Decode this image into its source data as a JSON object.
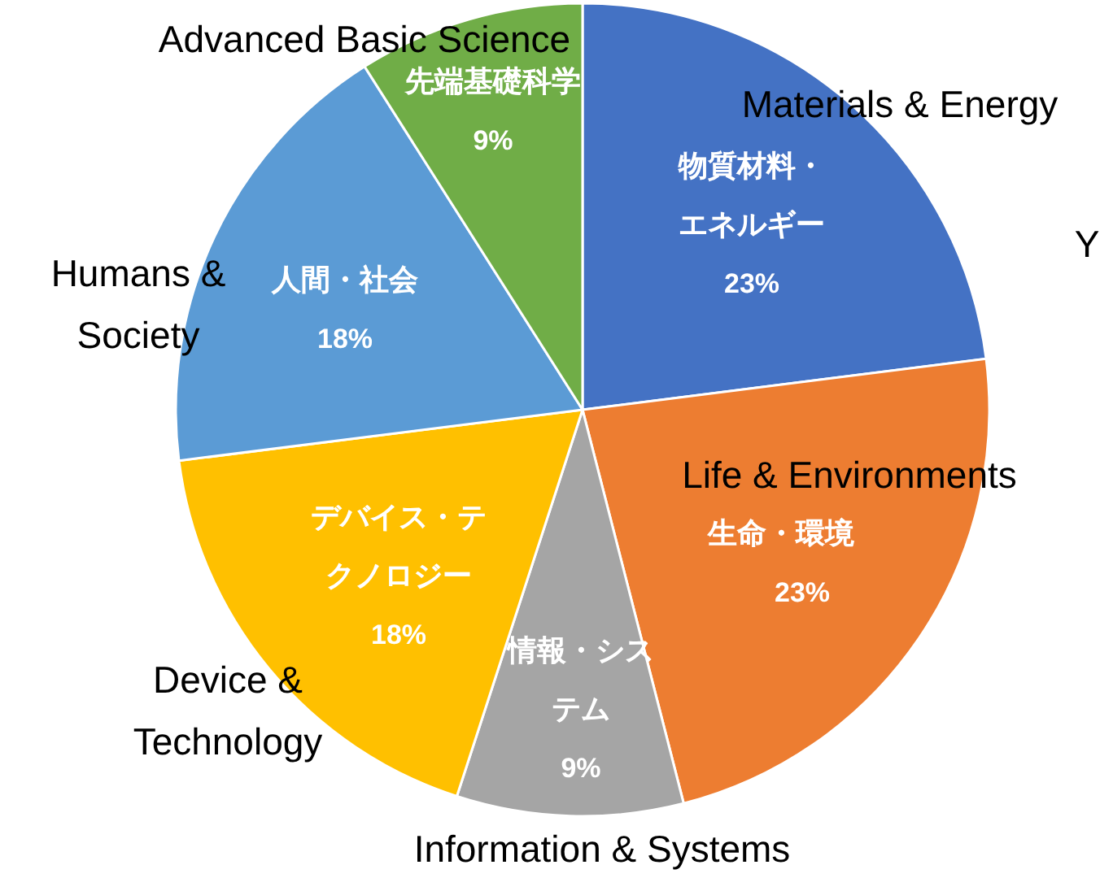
{
  "chart_data": {
    "type": "pie",
    "categories": [
      "Materials & Energy",
      "Life & Environments",
      "Information & Systems",
      "Device & Technology",
      "Humans & Society",
      "Advanced Basic Science"
    ],
    "values": [
      23,
      23,
      9,
      18,
      18,
      9
    ],
    "colors": [
      "#4472c4",
      "#ed7d31",
      "#a5a5a5",
      "#ffc000",
      "#5b9bd5",
      "#70ad47"
    ],
    "value_labels": [
      "23%",
      "23%",
      "9%",
      "18%",
      "18%",
      "9%"
    ],
    "annotations": [
      {
        "text": "物質材料・エネルギー",
        "x": "Materials & Energy"
      },
      {
        "text": "生命・環境",
        "x": "Life & Environments"
      },
      {
        "text": "情報・システム",
        "x": "Information & Systems"
      },
      {
        "text": "デバイス・テクノロジー",
        "x": "Device & Technology"
      },
      {
        "text": "人間・社会",
        "x": "Humans & Society"
      },
      {
        "text": "先端基礎科学",
        "x": "Advanced Basic Science"
      },
      "Y"
    ]
  }
}
